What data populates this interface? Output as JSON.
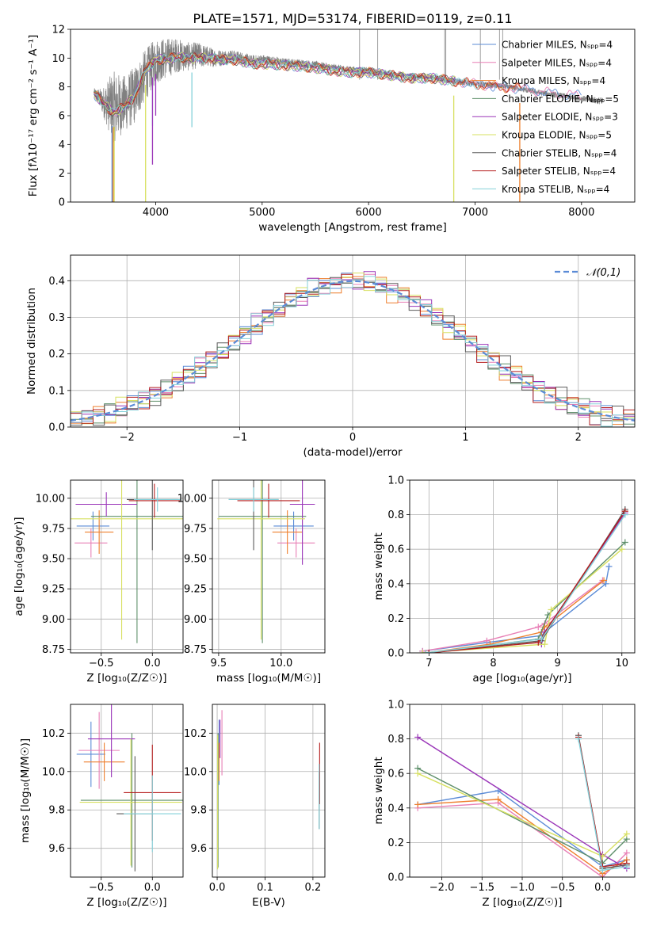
{
  "figure_title": "PLATE=1571, MJD=53174, FIBERID=0119, z=0.11",
  "colors": [
    "#5b8bd6",
    "#e87fb6",
    "#ee7f2d",
    "#5e8f6a",
    "#9a35b8",
    "#d7e060",
    "#5b5b5b",
    "#b51e1e",
    "#85d1da"
  ],
  "chart_data": [
    {
      "type": "line",
      "name": "spectrum",
      "xlabel": "wavelength [Angstrom, rest frame]",
      "ylabel": "Flux [fλ10⁻¹⁷ erg cm⁻² s⁻¹ A⁻¹]",
      "xlim": [
        3200,
        8500
      ],
      "ylim": [
        0,
        12
      ],
      "xticks": [
        "4000",
        "5000",
        "6000",
        "7000",
        "8000"
      ],
      "yticks": [
        "0",
        "2",
        "4",
        "6",
        "8",
        "10",
        "12"
      ],
      "grid": false,
      "legend": "top-right",
      "legend_entries": [
        "Chabrier MILES, Nₛₚₚ=4",
        "Salpeter MILES, Nₛₚₚ=4",
        "Kroupa MILES, Nₛₚₚ=4",
        "Chabrier ELODIE, Nₛₚₚ=5",
        "Salpeter ELODIE, Nₛₚₚ=3",
        "Kroupa ELODIE, Nₛₚₚ=5",
        "Chabrier STELIB, Nₛₚₚ=4",
        "Salpeter STELIB, Nₛₚₚ=4",
        "Kroupa STELIB, Nₛₚₚ=4"
      ],
      "data_trace": {
        "color": "#808080",
        "x": [
          3420,
          3500,
          3600,
          3700,
          3800,
          3900,
          4000,
          4100,
          4200,
          4300,
          4400,
          4500,
          4600,
          4700,
          4800,
          4900,
          5000,
          5200,
          5400,
          5600,
          5800,
          6000,
          6200,
          6400,
          6600,
          6800,
          7000,
          7200,
          7400,
          7600,
          7800,
          8000,
          8200
        ],
        "y": [
          7.6,
          7.0,
          6.6,
          6.8,
          7.4,
          8.8,
          9.8,
          10.0,
          10.2,
          10.1,
          10.2,
          10.1,
          10.0,
          10.1,
          10.0,
          9.8,
          9.9,
          9.7,
          9.6,
          9.4,
          9.2,
          9.1,
          8.9,
          8.7,
          8.7,
          8.4,
          8.2,
          8.1,
          7.9,
          7.6,
          7.4,
          7.2,
          7.0
        ],
        "noise": [
          0.3,
          0.9,
          2.5,
          2.0,
          2.0,
          1.8,
          1.6,
          1.4,
          1.2,
          1.0,
          0.9,
          0.7,
          0.6,
          0.5,
          0.45,
          0.4,
          0.35,
          0.3,
          0.3,
          0.28,
          0.26,
          0.26,
          0.24,
          0.24,
          0.22,
          0.22,
          0.2,
          0.2,
          0.2,
          0.2,
          0.2,
          0.2,
          0.25
        ]
      },
      "model_x": [
        3420,
        3500,
        3600,
        3700,
        3800,
        3900,
        4000,
        4100,
        4200,
        4300,
        4400,
        4500,
        4600,
        4700,
        4800,
        4900,
        5000,
        5200,
        5400,
        5600,
        5800,
        6000,
        6200,
        6400,
        6600,
        6800,
        7000,
        7200,
        7400,
        7600,
        7800,
        8000
      ],
      "model_y": [
        7.5,
        7.0,
        6.2,
        6.6,
        7.3,
        9.1,
        9.9,
        9.9,
        10.1,
        10.0,
        10.0,
        10.0,
        9.9,
        9.9,
        9.8,
        9.6,
        9.6,
        9.5,
        9.4,
        9.2,
        9.0,
        9.0,
        8.8,
        8.6,
        8.6,
        8.4,
        8.2,
        8.0,
        7.9,
        7.7,
        7.5,
        7.4
      ],
      "model_ends": [
        9150,
        9150,
        7430,
        6820,
        6820,
        6820,
        6820,
        7430,
        7050
      ],
      "model_dips": [
        {
          "x": 3590,
          "y": 0,
          "series": 0
        },
        {
          "x": 3600,
          "y": 0,
          "series": 2
        },
        {
          "x": 3610,
          "y": 0,
          "series": 5
        },
        {
          "x": 3905,
          "y": 0,
          "series": 5
        },
        {
          "x": 4340,
          "y": 5.2,
          "series": 8
        },
        {
          "x": 3970,
          "y": 5.3,
          "series": 8
        },
        {
          "x": 6800,
          "y": 0,
          "series": 5
        },
        {
          "x": 7420,
          "y": 0,
          "series": 2
        },
        {
          "x": 4000,
          "y": 6.0,
          "series": 4
        },
        {
          "x": 3970,
          "y": 2.6,
          "series": 4
        }
      ],
      "spikes": [
        {
          "x": 6715,
          "y": 12
        },
        {
          "x": 6725,
          "y": 12
        },
        {
          "x": 7050,
          "y": 12
        },
        {
          "x": 7230,
          "y": 12
        },
        {
          "x": 7260,
          "y": 12
        },
        {
          "x": 6085,
          "y": 12
        },
        {
          "x": 5915,
          "y": 12
        }
      ]
    },
    {
      "type": "line",
      "name": "residual-histogram",
      "xlabel": "(data-model)/error",
      "ylabel": "Normed distribution",
      "xlim": [
        -2.5,
        2.5
      ],
      "ylim": [
        0,
        0.47
      ],
      "xticks": [
        "−2",
        "−1",
        "0",
        "1",
        "2"
      ],
      "yticks": [
        "0.0",
        "0.1",
        "0.2",
        "0.3",
        "0.4"
      ],
      "grid": true,
      "legend": "top-right",
      "legend_entries": [
        "𝒩(0,1)"
      ],
      "bin_width": 0.1,
      "reference_curve": "normal(0,1)",
      "offsets": [
        [
          0.01,
          -0.02,
          0.0,
          0.015,
          -0.01,
          0.02,
          -0.015,
          0.005,
          -0.01
        ],
        [
          -0.015,
          0.02,
          -0.01,
          -0.01,
          0.025,
          -0.005,
          0.01,
          -0.02,
          0.015
        ],
        [
          0.02,
          -0.005,
          0.015,
          -0.02,
          0.005,
          0.01,
          -0.01,
          0.02,
          -0.015
        ],
        [
          -0.01,
          0.01,
          -0.02,
          0.01,
          -0.015,
          -0.02,
          0.02,
          0.0,
          0.01
        ],
        [
          0.005,
          -0.015,
          0.02,
          -0.005,
          0.01,
          0.015,
          -0.02,
          0.01,
          -0.005
        ]
      ]
    },
    {
      "type": "scatter",
      "name": "age-vs-metallicity",
      "xlabel": "Z [log₁₀(Z/Z☉)]",
      "ylabel": "age  [log₁₀(age/yr)]",
      "xlim": [
        -0.8,
        0.3
      ],
      "ylim": [
        8.72,
        10.15
      ],
      "xticks": [
        "−0.5",
        "0.0"
      ],
      "xtick_values": [
        -0.5,
        0.0
      ],
      "yticks": [
        "8.75",
        "9.00",
        "9.25",
        "9.50",
        "9.75",
        "10.00"
      ],
      "ytick_values": [
        8.75,
        9.0,
        9.25,
        9.5,
        9.75,
        10.0
      ],
      "grid": true,
      "points": [
        {
          "s": 0,
          "x": -0.58,
          "y": 9.77,
          "xe": 0.16,
          "ye": 0.12
        },
        {
          "s": 1,
          "x": -0.6,
          "y": 9.63,
          "xe": 0.16,
          "ye": 0.12
        },
        {
          "s": 2,
          "x": -0.52,
          "y": 9.72,
          "xe": 0.14,
          "ye": 0.18
        },
        {
          "s": 3,
          "x": -0.15,
          "y": 9.85,
          "xe": 0.45,
          "ye": 1.05
        },
        {
          "s": 4,
          "x": -0.45,
          "y": 9.95,
          "xe": 0.3,
          "ye": 0.1
        },
        {
          "s": 5,
          "x": -0.3,
          "y": 9.83,
          "xe": 0.6,
          "ye": 1.0
        },
        {
          "s": 6,
          "x": 0.0,
          "y": 9.99,
          "xe": 0.25,
          "ye": 0.42
        },
        {
          "s": 7,
          "x": 0.02,
          "y": 9.98,
          "xe": 0.25,
          "ye": 0.14
        },
        {
          "s": 8,
          "x": 0.05,
          "y": 9.99,
          "xe": 0.23,
          "ye": 0.1
        }
      ]
    },
    {
      "type": "scatter",
      "name": "age-vs-mass",
      "xlabel": "mass [log₁₀(M/M☉)]",
      "ylabel": "",
      "xlim": [
        9.45,
        10.35
      ],
      "ylim": [
        8.72,
        10.15
      ],
      "xticks": [
        "9.5",
        "10.0"
      ],
      "xtick_values": [
        9.5,
        10.0
      ],
      "yticks": [
        "8.75",
        "9.00",
        "9.25",
        "9.50",
        "9.75",
        "10.00"
      ],
      "ytick_values": [
        8.75,
        9.0,
        9.25,
        9.5,
        9.75,
        10.0
      ],
      "grid": true,
      "points": [
        {
          "s": 0,
          "x": 10.1,
          "y": 9.77,
          "xe": 0.16,
          "ye": 0.12
        },
        {
          "s": 1,
          "x": 10.12,
          "y": 9.63,
          "xe": 0.15,
          "ye": 0.12
        },
        {
          "s": 2,
          "x": 10.05,
          "y": 9.72,
          "xe": 0.12,
          "ye": 0.18
        },
        {
          "s": 3,
          "x": 9.85,
          "y": 9.85,
          "xe": 0.35,
          "ye": 1.05
        },
        {
          "s": 4,
          "x": 10.17,
          "y": 9.95,
          "xe": 0.1,
          "ye": 0.5
        },
        {
          "s": 5,
          "x": 9.84,
          "y": 9.83,
          "xe": 0.35,
          "ye": 1.0
        },
        {
          "s": 6,
          "x": 9.78,
          "y": 9.99,
          "xe": 0.2,
          "ye": 0.42
        },
        {
          "s": 7,
          "x": 9.9,
          "y": 9.98,
          "xe": 0.25,
          "ye": 0.14
        },
        {
          "s": 8,
          "x": 9.78,
          "y": 9.99,
          "xe": 0.2,
          "ye": 0.1
        }
      ]
    },
    {
      "type": "line",
      "name": "mass-weight-vs-age",
      "xlabel": "age  [log₁₀(age/yr)]",
      "ylabel": "mass weight",
      "xlim": [
        6.7,
        10.2
      ],
      "ylim": [
        0,
        1
      ],
      "xticks": [
        "7",
        "8",
        "9",
        "10"
      ],
      "xtick_values": [
        7,
        8,
        9,
        10
      ],
      "yticks": [
        "0.0",
        "0.2",
        "0.4",
        "0.6",
        "0.8",
        "1.0"
      ],
      "ytick_values": [
        0,
        0.2,
        0.4,
        0.6,
        0.8,
        1.0
      ],
      "grid": true,
      "series": [
        {
          "s": 0,
          "x": [
            6.9,
            7.9,
            8.75,
            8.8,
            9.75,
            9.8
          ],
          "y": [
            0.01,
            0.06,
            0.1,
            0.12,
            0.4,
            0.5
          ]
        },
        {
          "s": 1,
          "x": [
            6.9,
            7.9,
            8.7,
            8.8,
            9.7
          ],
          "y": [
            0.01,
            0.07,
            0.15,
            0.17,
            0.42
          ]
        },
        {
          "s": 2,
          "x": [
            6.95,
            7.95,
            8.75,
            8.8,
            9.72
          ],
          "y": [
            0.0,
            0.05,
            0.12,
            0.15,
            0.42
          ]
        },
        {
          "s": 3,
          "x": [
            7.0,
            8.7,
            8.85,
            10.05
          ],
          "y": [
            0.0,
            0.08,
            0.22,
            0.64
          ]
        },
        {
          "s": 4,
          "x": [
            8.75,
            8.8,
            10.05
          ],
          "y": [
            0.05,
            0.12,
            0.81
          ]
        },
        {
          "s": 5,
          "x": [
            6.9,
            8.8,
            8.9,
            10.0
          ],
          "y": [
            0.0,
            0.05,
            0.25,
            0.6
          ]
        },
        {
          "s": 6,
          "x": [
            7.0,
            8.75,
            10.05
          ],
          "y": [
            0.0,
            0.07,
            0.83
          ]
        },
        {
          "s": 7,
          "x": [
            7.0,
            8.7,
            10.05
          ],
          "y": [
            0.0,
            0.06,
            0.82
          ]
        },
        {
          "s": 8,
          "x": [
            6.95,
            8.75,
            10.05
          ],
          "y": [
            0.0,
            0.08,
            0.8
          ]
        }
      ]
    },
    {
      "type": "scatter",
      "name": "mass-vs-metallicity",
      "xlabel": "Z [log₁₀(Z/Z☉)]",
      "ylabel": "mass [log₁₀(M/M☉)]",
      "xlim": [
        -0.8,
        0.3
      ],
      "ylim": [
        9.45,
        10.35
      ],
      "xticks": [
        "−0.5",
        "0.0"
      ],
      "xtick_values": [
        -0.5,
        0.0
      ],
      "yticks": [
        "9.6",
        "9.8",
        "10.0",
        "10.2"
      ],
      "ytick_values": [
        9.6,
        9.8,
        10.0,
        10.2
      ],
      "grid": true,
      "points": [
        {
          "s": 0,
          "x": -0.6,
          "y": 10.09,
          "xe": 0.14,
          "ye": 0.17
        },
        {
          "s": 1,
          "x": -0.52,
          "y": 10.11,
          "xe": 0.2,
          "ye": 0.2
        },
        {
          "s": 2,
          "x": -0.47,
          "y": 10.05,
          "xe": 0.2,
          "ye": 0.1
        },
        {
          "s": 3,
          "x": -0.2,
          "y": 9.85,
          "xe": 0.5,
          "ye": 0.35
        },
        {
          "s": 4,
          "x": -0.4,
          "y": 10.17,
          "xe": 0.23,
          "ye": 0.2
        },
        {
          "s": 5,
          "x": -0.21,
          "y": 9.84,
          "xe": 0.5,
          "ye": 0.33
        },
        {
          "s": 6,
          "x": -0.17,
          "y": 9.78,
          "xe": 0.18,
          "ye": 0.3
        },
        {
          "s": 7,
          "x": 0.0,
          "y": 9.89,
          "xe": 0.28,
          "ye": 0.25
        },
        {
          "s": 8,
          "x": 0.0,
          "y": 9.78,
          "xe": 0.28,
          "ye": 0.2
        }
      ]
    },
    {
      "type": "scatter",
      "name": "mass-vs-extinction",
      "xlabel": "E(B-V)",
      "ylabel": "",
      "xlim": [
        -0.01,
        0.225
      ],
      "ylim": [
        9.45,
        10.35
      ],
      "xticks": [
        "0.0",
        "0.1",
        "0.2"
      ],
      "xtick_values": [
        0.0,
        0.1,
        0.2
      ],
      "yticks": [
        "9.6",
        "9.8",
        "10.0",
        "10.2"
      ],
      "ytick_values": [
        9.6,
        9.8,
        10.0,
        10.2
      ],
      "grid": true,
      "points": [
        {
          "s": 0,
          "x": 0.004,
          "y": 10.1,
          "xe": 0,
          "ye": 0.17
        },
        {
          "s": 1,
          "x": 0.01,
          "y": 10.15,
          "xe": 0,
          "ye": 0.17
        },
        {
          "s": 2,
          "x": 0.004,
          "y": 10.05,
          "xe": 0,
          "ye": 0.1
        },
        {
          "s": 3,
          "x": 0.002,
          "y": 9.85,
          "xe": 0,
          "ye": 0.35
        },
        {
          "s": 4,
          "x": 0.006,
          "y": 10.17,
          "xe": 0,
          "ye": 0.1
        },
        {
          "s": 5,
          "x": 0.001,
          "y": 9.84,
          "xe": 0,
          "ye": 0.35
        },
        {
          "s": 6,
          "x": 0.213,
          "y": 9.85,
          "xe": 0,
          "ye": 0.15
        },
        {
          "s": 7,
          "x": 0.214,
          "y": 9.99,
          "xe": 0,
          "ye": 0.16
        },
        {
          "s": 8,
          "x": 0.213,
          "y": 9.87,
          "xe": 0,
          "ye": 0.17
        }
      ]
    },
    {
      "type": "line",
      "name": "mass-weight-vs-metallicity",
      "xlabel": "Z [log₁₀(Z/Z☉)]",
      "ylabel": "mass weight",
      "xlim": [
        -2.4,
        0.4
      ],
      "ylim": [
        0,
        1
      ],
      "xticks": [
        "−2.0",
        "−1.5",
        "−1.0",
        "−0.5",
        "0.0"
      ],
      "xtick_values": [
        -2.0,
        -1.5,
        -1.0,
        -0.5,
        0.0
      ],
      "yticks": [
        "0.0",
        "0.2",
        "0.4",
        "0.6",
        "0.8",
        "1.0"
      ],
      "ytick_values": [
        0,
        0.2,
        0.4,
        0.6,
        0.8,
        1.0
      ],
      "grid": true,
      "series": [
        {
          "s": 0,
          "x": [
            -2.3,
            -1.3,
            0.0,
            0.3
          ],
          "y": [
            0.42,
            0.5,
            0.06,
            0.1
          ]
        },
        {
          "s": 1,
          "x": [
            -2.3,
            -1.3,
            0.0,
            0.3
          ],
          "y": [
            0.4,
            0.43,
            0.0,
            0.14
          ]
        },
        {
          "s": 2,
          "x": [
            -2.3,
            -1.3,
            0.0,
            0.3
          ],
          "y": [
            0.42,
            0.45,
            0.02,
            0.1
          ]
        },
        {
          "s": 3,
          "x": [
            -2.3,
            0.0,
            0.3
          ],
          "y": [
            0.63,
            0.08,
            0.22
          ]
        },
        {
          "s": 4,
          "x": [
            -2.3,
            0.0,
            0.3
          ],
          "y": [
            0.81,
            0.13,
            0.05
          ]
        },
        {
          "s": 5,
          "x": [
            -2.3,
            0.0,
            0.3
          ],
          "y": [
            0.6,
            0.12,
            0.25
          ]
        },
        {
          "s": 6,
          "x": [
            -0.3,
            0.0,
            0.3
          ],
          "y": [
            0.82,
            0.05,
            0.07
          ]
        },
        {
          "s": 7,
          "x": [
            -0.3,
            0.0,
            0.3
          ],
          "y": [
            0.81,
            0.06,
            0.08
          ]
        },
        {
          "s": 8,
          "x": [
            -0.3,
            0.0,
            0.3
          ],
          "y": [
            0.8,
            0.04,
            0.06
          ]
        }
      ]
    }
  ]
}
